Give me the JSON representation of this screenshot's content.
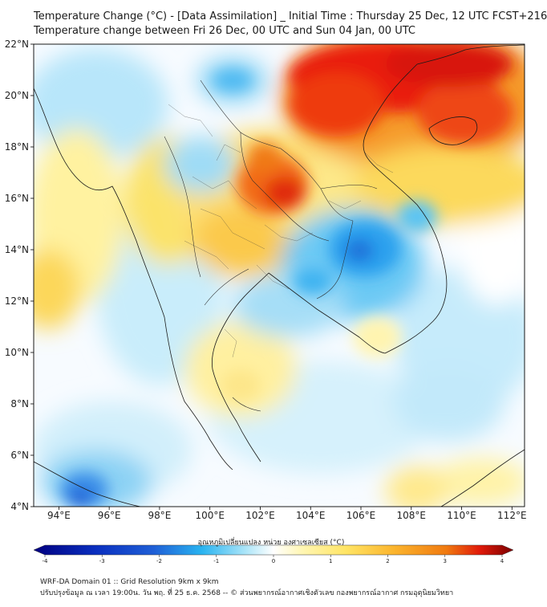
{
  "title": {
    "line1": "Temperature Change (°C) - [Data Assimilation] _ Initial Time : Thursday 25 Dec, 12 UTC FCST+216",
    "line2": "Temperature change between Fri 26 Dec, 00 UTC and Sun 04 Jan, 00 UTC"
  },
  "map": {
    "lat_labels": [
      "22°N",
      "20°N",
      "18°N",
      "16°N",
      "14°N",
      "12°N",
      "10°N",
      "8°N",
      "6°N",
      "4°N"
    ],
    "lon_labels": [
      "94°E",
      "96°E",
      "98°E",
      "100°E",
      "102°E",
      "104°E",
      "106°E",
      "108°E",
      "110°E",
      "112°E"
    ],
    "lat_range": [
      4,
      22
    ],
    "lon_range": [
      93,
      112.5
    ]
  },
  "colorbar": {
    "title": "อุณหภูมิเปลี่ยนแปลง หน่วย องศาเซลเซียส (°C)",
    "ticks": [
      "-4",
      "-3",
      "-2",
      "-1",
      "0",
      "1",
      "2",
      "3",
      "4"
    ],
    "range": [
      -4,
      4
    ],
    "colors": {
      "cold_extreme": "#000080",
      "cold": "#1f5fd6",
      "cool": "#29b3f0",
      "neutral": "#ffffff",
      "warm": "#ffe566",
      "hot": "#f07a10",
      "hot_extreme": "#7a0000"
    }
  },
  "footer": {
    "line1": "WRF-DA Domain 01 :: Grid Resolution 9km x 9km",
    "line2": "ปรับปรุงข้อมูล ณ เวลา 19:00น. วัน พฤ. ที่ 25 ธ.ค. 2568 -- © ส่วนพยากรณ์อากาศเชิงตัวเลข กองพยากรณ์อากาศ กรมอุตุนิยมวิทยา"
  }
}
